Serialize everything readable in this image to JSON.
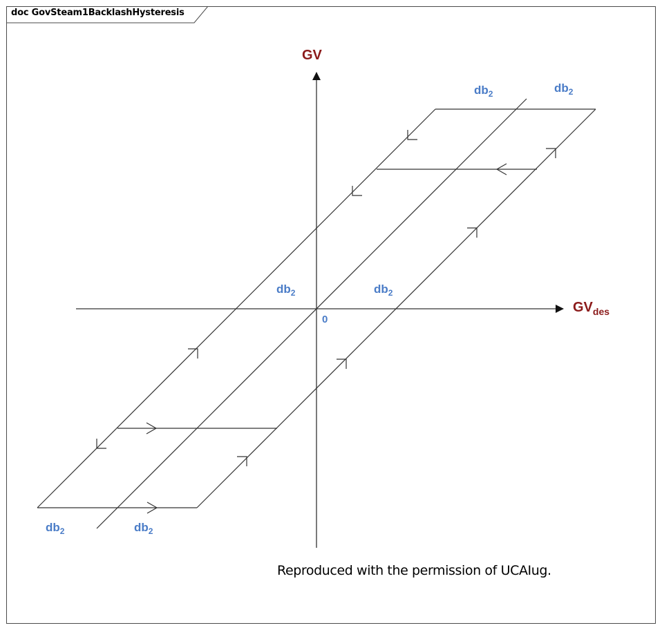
{
  "frame": {
    "title": "doc GovSteam1BacklashHysteresis"
  },
  "diagram": {
    "y_axis_label": "GV",
    "x_axis_label_main": "GV",
    "x_axis_label_sub": "des",
    "origin_label": "0",
    "db_main": "db",
    "db_sub": "2",
    "caption": "Reproduced with the permission of UCAIug."
  },
  "colors": {
    "axis_label": "#8b1a1a",
    "db_label": "#4a7cc7",
    "lines": "#333333"
  }
}
